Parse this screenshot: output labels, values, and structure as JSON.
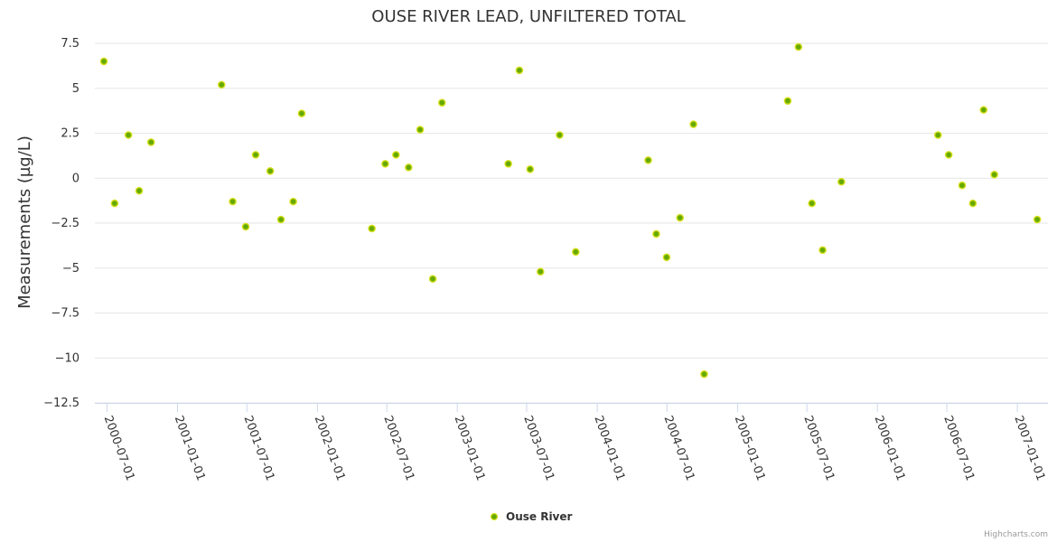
{
  "chart_data": {
    "type": "scatter",
    "title": "OUSE RIVER LEAD, UNFILTERED TOTAL",
    "ylabel": "Measurements (µg/L)",
    "xlabel": "",
    "ylim": [
      -12.5,
      7.5
    ],
    "y_ticks": [
      7.5,
      5,
      2.5,
      0,
      -2.5,
      -5,
      -7.5,
      -10,
      -12.5
    ],
    "y_tick_labels": [
      "7.5",
      "5",
      "2.5",
      "0",
      "−2.5",
      "−5",
      "−7.5",
      "−10",
      "−12.5"
    ],
    "x_ticks": [
      "2000-07-01",
      "2001-01-01",
      "2001-07-01",
      "2002-01-01",
      "2002-07-01",
      "2003-01-01",
      "2003-07-01",
      "2004-01-01",
      "2004-07-01",
      "2005-01-01",
      "2005-07-01",
      "2006-01-01",
      "2006-07-01",
      "2007-01-01"
    ],
    "xlim": [
      "2000-06-23",
      "2007-02-24"
    ],
    "grid": true,
    "legend": "bottom-center",
    "series": [
      {
        "name": "Ouse River",
        "color": "#7cb5ec",
        "marker_color": "#66aa00",
        "points": [
          {
            "x": "2000-06-23",
            "y": 6.5
          },
          {
            "x": "2000-07-21",
            "y": -1.4
          },
          {
            "x": "2000-08-26",
            "y": 2.4
          },
          {
            "x": "2000-09-23",
            "y": -0.7
          },
          {
            "x": "2000-10-24",
            "y": 2.0
          },
          {
            "x": "2001-04-26",
            "y": 5.2
          },
          {
            "x": "2001-05-25",
            "y": -1.3
          },
          {
            "x": "2001-06-28",
            "y": -2.7
          },
          {
            "x": "2001-07-24",
            "y": 1.3
          },
          {
            "x": "2001-08-31",
            "y": 0.4
          },
          {
            "x": "2001-09-28",
            "y": -2.3
          },
          {
            "x": "2001-10-30",
            "y": -1.3
          },
          {
            "x": "2001-11-21",
            "y": 3.6
          },
          {
            "x": "2002-05-23",
            "y": -2.8
          },
          {
            "x": "2002-06-27",
            "y": 0.8
          },
          {
            "x": "2002-07-25",
            "y": 1.3
          },
          {
            "x": "2002-08-27",
            "y": 0.6
          },
          {
            "x": "2002-09-26",
            "y": 2.7
          },
          {
            "x": "2002-10-29",
            "y": -5.6
          },
          {
            "x": "2002-11-22",
            "y": 4.2
          },
          {
            "x": "2003-05-14",
            "y": 0.8
          },
          {
            "x": "2003-06-12",
            "y": 6.0
          },
          {
            "x": "2003-07-10",
            "y": 0.5
          },
          {
            "x": "2003-08-06",
            "y": -5.2
          },
          {
            "x": "2003-09-25",
            "y": 2.4
          },
          {
            "x": "2003-11-06",
            "y": -4.1
          },
          {
            "x": "2004-05-13",
            "y": 1.0
          },
          {
            "x": "2004-06-03",
            "y": -3.1
          },
          {
            "x": "2004-06-30",
            "y": -4.4
          },
          {
            "x": "2004-08-04",
            "y": -2.2
          },
          {
            "x": "2004-09-08",
            "y": 3.0
          },
          {
            "x": "2004-10-06",
            "y": -10.9
          },
          {
            "x": "2005-05-12",
            "y": 4.3
          },
          {
            "x": "2005-06-09",
            "y": 7.3
          },
          {
            "x": "2005-07-14",
            "y": -1.4
          },
          {
            "x": "2005-08-11",
            "y": -4.0
          },
          {
            "x": "2005-09-29",
            "y": -0.2
          },
          {
            "x": "2006-06-08",
            "y": 2.4
          },
          {
            "x": "2006-07-06",
            "y": 1.3
          },
          {
            "x": "2006-08-10",
            "y": -0.4
          },
          {
            "x": "2006-09-07",
            "y": -1.4
          },
          {
            "x": "2006-10-05",
            "y": 3.8
          },
          {
            "x": "2006-11-02",
            "y": 0.2
          },
          {
            "x": "2007-02-22",
            "y": -2.3
          }
        ]
      }
    ]
  },
  "credits": "Highcharts.com"
}
